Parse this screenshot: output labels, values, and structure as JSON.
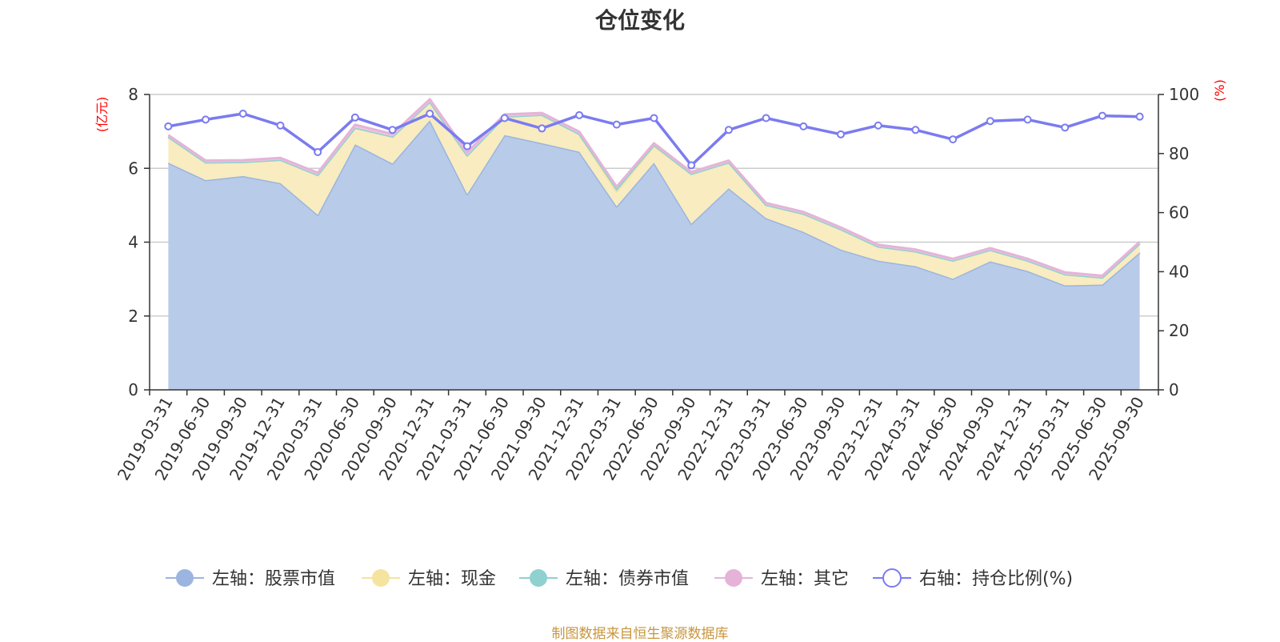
{
  "chart_data": {
    "type": "area",
    "title": "仓位变化",
    "categories": [
      "2019-03-31",
      "2019-06-30",
      "2019-09-30",
      "2019-12-31",
      "2020-03-31",
      "2020-06-30",
      "2020-09-30",
      "2020-12-31",
      "2021-03-31",
      "2021-06-30",
      "2021-09-30",
      "2021-12-31",
      "2022-03-31",
      "2022-06-30",
      "2022-09-30",
      "2022-12-31",
      "2023-03-31",
      "2023-06-30",
      "2023-09-30",
      "2023-12-31",
      "2024-03-31",
      "2024-06-30",
      "2024-09-30",
      "2024-12-31",
      "2025-03-31",
      "2025-06-30",
      "2025-09-30"
    ],
    "left_axis": {
      "unit": "(亿元)",
      "ylim": [
        0,
        8
      ],
      "ticks": [
        "0",
        "2",
        "4",
        "6",
        "8"
      ]
    },
    "right_axis": {
      "unit": "(%)",
      "ylim": [
        0,
        100
      ],
      "ticks": [
        "0",
        "20",
        "40",
        "60",
        "80",
        "100"
      ]
    },
    "stacked": true,
    "grid": true,
    "legend_position": "bottom",
    "series": [
      {
        "name": "左轴：股票市值",
        "axis": "left",
        "kind": "area",
        "color": "#9bb5e0",
        "fill": "#b8cbe9",
        "values": [
          6.15,
          5.68,
          5.79,
          5.6,
          4.74,
          6.65,
          6.13,
          7.3,
          5.3,
          6.9,
          6.68,
          6.45,
          4.97,
          6.15,
          4.5,
          5.46,
          4.65,
          4.28,
          3.8,
          3.5,
          3.35,
          3.01,
          3.48,
          3.22,
          2.83,
          2.85,
          3.72
        ]
      },
      {
        "name": "左轴：现金",
        "axis": "left",
        "kind": "area",
        "color": "#f5e3a0",
        "fill": "#f8ecc0",
        "values": [
          0.7,
          0.48,
          0.38,
          0.63,
          1.08,
          0.45,
          0.73,
          0.5,
          1.05,
          0.5,
          0.77,
          0.48,
          0.4,
          0.45,
          1.35,
          0.7,
          0.36,
          0.49,
          0.55,
          0.38,
          0.4,
          0.49,
          0.31,
          0.28,
          0.3,
          0.19,
          0.24
        ]
      },
      {
        "name": "左轴：债券市值",
        "axis": "left",
        "kind": "area",
        "color": "#8fd1cf",
        "fill": "#a6dcd9",
        "values": [
          0,
          0,
          0,
          0,
          0,
          0,
          0,
          0,
          0,
          0,
          0,
          0,
          0.08,
          0.03,
          0,
          0,
          0,
          0,
          0,
          0,
          0,
          0,
          0,
          0,
          0,
          0,
          0
        ]
      },
      {
        "name": "左轴：其它",
        "axis": "left",
        "kind": "area",
        "color": "#e6b3d8",
        "fill": "#eec6e2",
        "values": [
          0.05,
          0.05,
          0.05,
          0.05,
          0.06,
          0.08,
          0.07,
          0.07,
          0.08,
          0.06,
          0.05,
          0.06,
          0.05,
          0.05,
          0.05,
          0.05,
          0.05,
          0.05,
          0.05,
          0.05,
          0.05,
          0.05,
          0.05,
          0.05,
          0.05,
          0.05,
          0.05
        ]
      },
      {
        "name": "右轴：持仓比例(%)",
        "axis": "right",
        "kind": "line",
        "color": "#7b7bf0",
        "values": [
          89.2,
          91.5,
          93.5,
          89.5,
          80.5,
          92.2,
          88.0,
          93.5,
          82.5,
          92.0,
          88.5,
          93.0,
          89.8,
          92.0,
          76.0,
          88.0,
          92.0,
          89.2,
          86.5,
          89.5,
          88.0,
          84.8,
          91.0,
          91.5,
          88.8,
          92.8,
          92.5
        ]
      }
    ]
  },
  "footer": {
    "source": "制图数据来自恒生聚源数据库"
  }
}
